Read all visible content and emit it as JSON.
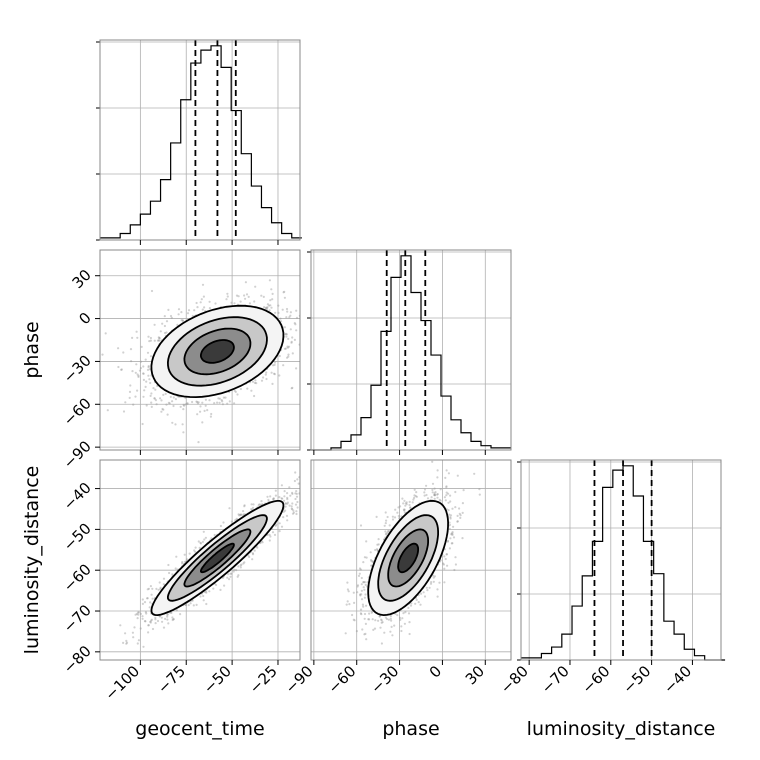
{
  "chart_data": {
    "type": "corner",
    "parameters": [
      "geocent_time",
      "phase",
      "luminosity_distance"
    ],
    "axis_labels": {
      "x": [
        "geocent_time",
        "phase",
        "luminosity_distance"
      ],
      "y": [
        "phase",
        "luminosity_distance"
      ]
    },
    "ranges": {
      "geocent_time": [
        -122,
        -13
      ],
      "phase": [
        -92,
        48
      ],
      "luminosity_distance": [
        -82,
        -33
      ]
    },
    "ticks": {
      "geocent_time": [
        -100,
        -75,
        -50,
        -25
      ],
      "phase": [
        -90,
        -60,
        -30,
        0,
        30
      ],
      "luminosity_distance": [
        -80,
        -70,
        -60,
        -50,
        -40
      ]
    },
    "tick_labels": {
      "geocent_time": [
        "−100",
        "−75",
        "−50",
        "−25"
      ],
      "phase": [
        "−90",
        "−60",
        "−30",
        "0",
        "30"
      ],
      "luminosity_distance": [
        "−80",
        "−70",
        "−60",
        "−50",
        "−40"
      ]
    },
    "quantiles": {
      "geocent_time": [
        -70,
        -58,
        -48
      ],
      "phase": [
        -39,
        -26,
        -12
      ],
      "luminosity_distance": [
        -64,
        -57,
        -50
      ]
    },
    "histograms": {
      "geocent_time": {
        "edges": [
          -122,
          -116.5,
          -111,
          -105.5,
          -100,
          -94.5,
          -89,
          -83.5,
          -78,
          -72.5,
          -67,
          -61.5,
          -56,
          -50.5,
          -45,
          -39.5,
          -34,
          -28.5,
          -23,
          -17.5,
          -12
        ],
        "counts": [
          1,
          1,
          3,
          7,
          12,
          18,
          28,
          45,
          65,
          82,
          88,
          90,
          80,
          60,
          40,
          25,
          15,
          8,
          3,
          1
        ]
      },
      "phase": {
        "edges": [
          -92,
          -85,
          -78,
          -71,
          -64,
          -57,
          -50,
          -43,
          -36,
          -29,
          -22,
          -15,
          -8,
          -1,
          6,
          13,
          20,
          27,
          34,
          41,
          48
        ],
        "counts": [
          0,
          0,
          1,
          4,
          7,
          15,
          30,
          55,
          80,
          90,
          73,
          60,
          44,
          25,
          14,
          8,
          4,
          2,
          1,
          1
        ]
      },
      "luminosity_distance": {
        "edges": [
          -82,
          -79.5,
          -77,
          -74.5,
          -72,
          -69.5,
          -67,
          -64.5,
          -62,
          -59.5,
          -57,
          -54.5,
          -52,
          -49.5,
          -47,
          -44.5,
          -42,
          -39.5,
          -37,
          -34.5,
          -32
        ],
        "counts": [
          1,
          1,
          3,
          6,
          12,
          25,
          39,
          55,
          80,
          88,
          90,
          76,
          55,
          40,
          18,
          12,
          5,
          2,
          0,
          0
        ]
      }
    },
    "pairs": [
      {
        "x": "geocent_time",
        "y": "phase",
        "mean": [
          -58,
          -23
        ],
        "sd": [
          18,
          16
        ],
        "rho": 0.35
      },
      {
        "x": "geocent_time",
        "y": "luminosity_distance",
        "mean": [
          -58,
          -57
        ],
        "sd": [
          18,
          7
        ],
        "rho": 0.92
      },
      {
        "x": "phase",
        "y": "luminosity_distance",
        "mean": [
          -24,
          -57
        ],
        "sd": [
          14,
          7
        ],
        "rho": 0.6
      }
    ],
    "contour_levels_sigma": [
      0.5,
      1.0,
      1.5,
      2.0
    ],
    "grid": true,
    "colors": {
      "line": "#000000",
      "grid": "#b0b0b0",
      "scatter": "#9a9a9a",
      "frame": "#888888"
    }
  }
}
